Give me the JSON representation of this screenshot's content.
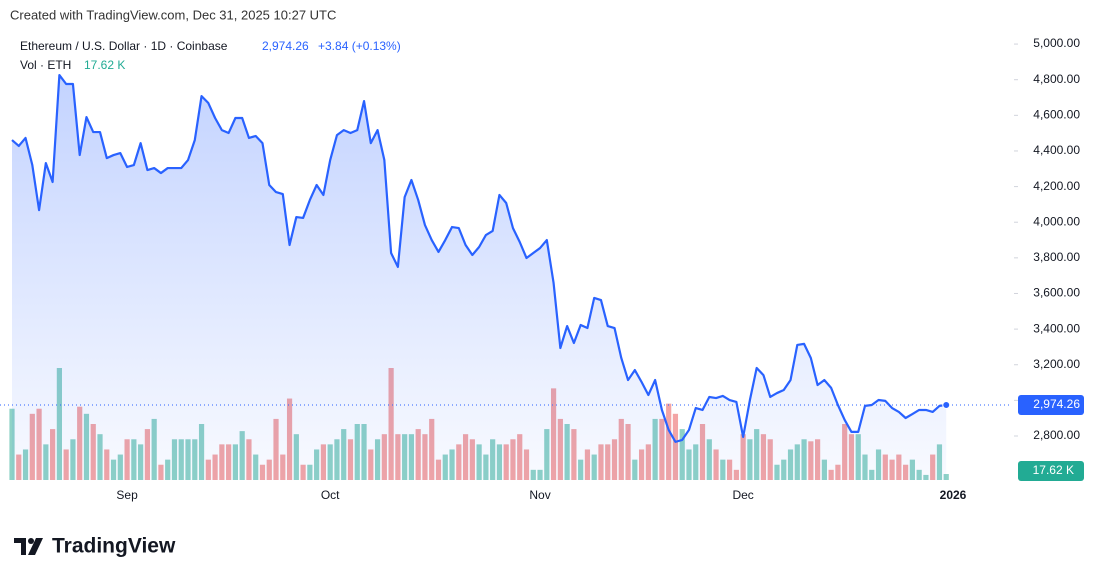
{
  "chart_data": {
    "type": "line",
    "note": "Created with TradingView.com, Dec 31, 2025 10:27 UTC",
    "brand": "TradingView",
    "change_label": "+3.84 (+0.13%)",
    "categories": [
      null,
      null,
      null,
      null,
      null,
      null,
      null,
      null,
      null,
      null,
      null,
      null,
      null,
      null,
      null,
      null,
      null,
      "Sep",
      null,
      null,
      null,
      null,
      null,
      null,
      null,
      null,
      null,
      null,
      null,
      null,
      null,
      null,
      null,
      null,
      null,
      null,
      null,
      null,
      null,
      null,
      null,
      null,
      null,
      null,
      null,
      null,
      null,
      "Oct",
      null,
      null,
      null,
      null,
      null,
      null,
      null,
      null,
      null,
      null,
      null,
      null,
      null,
      null,
      null,
      null,
      null,
      null,
      null,
      null,
      null,
      null,
      null,
      null,
      null,
      null,
      null,
      null,
      null,
      null,
      "Nov",
      null,
      null,
      null,
      null,
      null,
      null,
      null,
      null,
      null,
      null,
      null,
      null,
      null,
      null,
      null,
      null,
      null,
      null,
      null,
      null,
      null,
      null,
      null,
      null,
      null,
      null,
      null,
      null,
      null,
      "Dec",
      null,
      null,
      null,
      null,
      null,
      null,
      null,
      null,
      null,
      null,
      null,
      null,
      null,
      null,
      null,
      null,
      null,
      null,
      null,
      null,
      null,
      null,
      null,
      null,
      null,
      null,
      null,
      null,
      null,
      null,
      "2026"
    ],
    "ylim": [
      2553,
      5079
    ],
    "yticks": [
      {
        "value": 2800,
        "label": "2,800.00"
      },
      {
        "value": 3000,
        "label": "3,000.00"
      },
      {
        "value": 3200,
        "label": "3,200.00"
      },
      {
        "value": 3400,
        "label": "3,400.00"
      },
      {
        "value": 3600,
        "label": "3,600.00"
      },
      {
        "value": 3800,
        "label": "3,800.00"
      },
      {
        "value": 4000,
        "label": "4,000.00"
      },
      {
        "value": 4200,
        "label": "4,200.00"
      },
      {
        "value": 4400,
        "label": "4,400.00"
      },
      {
        "value": 4600,
        "label": "4,600.00"
      },
      {
        "value": 4800,
        "label": "4,800.00"
      },
      {
        "value": 5000,
        "label": "5,000.00"
      }
    ],
    "series": [
      {
        "name": "Ethereum / U.S. Dollar · 1D · Coinbase",
        "color": "#2962ff",
        "last_label": "2,974.26",
        "values": [
          4461,
          4428,
          4473,
          4321,
          4068,
          4332,
          4226,
          4826,
          4776,
          4776,
          4377,
          4590,
          4506,
          4506,
          4360,
          4377,
          4388,
          4310,
          4321,
          4444,
          4293,
          4304,
          4276,
          4304,
          4304,
          4304,
          4349,
          4461,
          4708,
          4669,
          4585,
          4517,
          4501,
          4585,
          4585,
          4473,
          4484,
          4444,
          4209,
          4169,
          4158,
          3872,
          4029,
          4024,
          4125,
          4209,
          4153,
          4349,
          4489,
          4517,
          4501,
          4517,
          4680,
          4444,
          4517,
          4349,
          3827,
          3749,
          4141,
          4237,
          4125,
          3984,
          3900,
          3833,
          3900,
          3973,
          3967,
          3872,
          3816,
          3861,
          3928,
          3951,
          4153,
          4108,
          3967,
          3889,
          3799,
          3827,
          3855,
          3900,
          3659,
          3294,
          3417,
          3322,
          3423,
          3406,
          3575,
          3563,
          3417,
          3406,
          3238,
          3114,
          3170,
          3103,
          3030,
          3114,
          2946,
          2834,
          2767,
          2778,
          2834,
          2957,
          2946,
          3019,
          3013,
          3025,
          3002,
          2991,
          2795,
          3002,
          3182,
          3142,
          3019,
          3041,
          3058,
          3114,
          3311,
          3317,
          3238,
          3086,
          3114,
          3070,
          2974,
          2890,
          2823,
          2823,
          2969,
          2974,
          3002,
          2997,
          2957,
          2935,
          2901,
          2923,
          2946,
          2946,
          2935,
          2969,
          2974.26,
          null
        ]
      },
      {
        "name": "Vol · ETH",
        "up_color": "#8ed2c6",
        "down_color": "#f3a5a5",
        "last_color": "#22ab94",
        "last_label": "17.62 K",
        "values": [
          210,
          75,
          90,
          195,
          210,
          105,
          150,
          330,
          90,
          120,
          216,
          195,
          165,
          135,
          90,
          60,
          75,
          120,
          120,
          105,
          150,
          180,
          45,
          60,
          120,
          120,
          120,
          120,
          165,
          60,
          75,
          105,
          105,
          105,
          144,
          120,
          75,
          45,
          60,
          180,
          75,
          240,
          135,
          45,
          45,
          90,
          105,
          105,
          120,
          150,
          120,
          165,
          165,
          90,
          120,
          135,
          330,
          135,
          135,
          135,
          150,
          135,
          180,
          60,
          75,
          90,
          105,
          135,
          120,
          105,
          75,
          120,
          105,
          105,
          120,
          135,
          90,
          30,
          30,
          150,
          270,
          180,
          165,
          150,
          60,
          90,
          75,
          105,
          105,
          120,
          180,
          165,
          60,
          90,
          105,
          180,
          180,
          225,
          195,
          150,
          90,
          105,
          165,
          120,
          90,
          60,
          60,
          30,
          135,
          120,
          150,
          135,
          120,
          45,
          60,
          90,
          105,
          120,
          114,
          120,
          60,
          30,
          45,
          165,
          135,
          135,
          75,
          30,
          90,
          75,
          60,
          75,
          45,
          60,
          30,
          15,
          75,
          105,
          17.62,
          null
        ]
      }
    ]
  }
}
